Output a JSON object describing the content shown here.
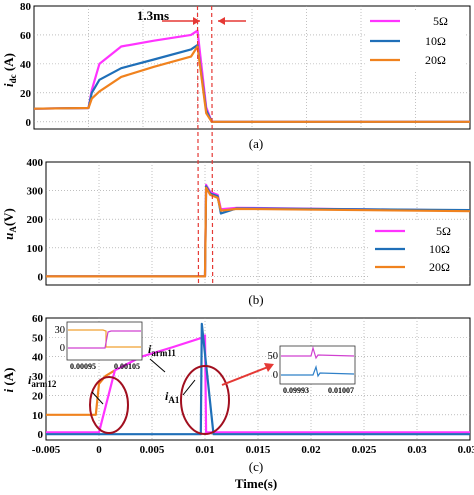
{
  "chart_data": [
    {
      "id": "a",
      "type": "line",
      "caption": "(a)",
      "ylabel_main": "i",
      "ylabel_sub": "dc",
      "ylabel_unit": " (A)",
      "ylim": [
        -5,
        80
      ],
      "yticks": [
        0,
        20,
        40,
        60,
        80
      ],
      "xlim": [
        -0.005,
        0.035
      ],
      "grid": true,
      "legend_position": "right",
      "annotation": "1.3ms",
      "series": [
        {
          "name": "5Ω",
          "color": "#ff33ff",
          "x": [
            -0.005,
            0.0,
            0.0003,
            0.001,
            0.003,
            0.006,
            0.0094,
            0.01,
            0.0108,
            0.0113,
            0.035
          ],
          "y": [
            9,
            9.5,
            22,
            40,
            52,
            56,
            60,
            63,
            10,
            0,
            0
          ]
        },
        {
          "name": "10Ω",
          "color": "#1f6fb8",
          "x": [
            -0.005,
            0.0,
            0.0003,
            0.001,
            0.003,
            0.006,
            0.0094,
            0.01,
            0.0108,
            0.0113,
            0.035
          ],
          "y": [
            9,
            9.5,
            20,
            29,
            37,
            43,
            50,
            53,
            8,
            0,
            0
          ]
        },
        {
          "name": "20Ω",
          "color": "#f0821e",
          "x": [
            -0.005,
            0.0,
            0.0003,
            0.001,
            0.003,
            0.006,
            0.0094,
            0.01,
            0.0108,
            0.0113,
            0.035
          ],
          "y": [
            9,
            9.5,
            16,
            21,
            31,
            38,
            45,
            52,
            6,
            0,
            0
          ]
        }
      ]
    },
    {
      "id": "b",
      "type": "line",
      "caption": "(b)",
      "ylabel_main": "u",
      "ylabel_sub": "A",
      "ylabel_unit": "(V)",
      "ylim": [
        -30,
        400
      ],
      "yticks": [
        0,
        100,
        200,
        300,
        400
      ],
      "xlim": [
        -0.005,
        0.035
      ],
      "grid": true,
      "legend_position": "bottom-right",
      "series": [
        {
          "name": "5Ω",
          "color": "#ff33ff",
          "x": [
            -0.005,
            0.01,
            0.0101,
            0.0105,
            0.0112,
            0.0115,
            0.013,
            0.035
          ],
          "y": [
            0,
            0,
            320,
            295,
            285,
            235,
            240,
            230
          ]
        },
        {
          "name": "10Ω",
          "color": "#1f6fb8",
          "x": [
            -0.005,
            0.01,
            0.0101,
            0.0105,
            0.0112,
            0.0115,
            0.013,
            0.035
          ],
          "y": [
            0,
            0,
            315,
            290,
            280,
            220,
            238,
            232
          ]
        },
        {
          "name": "20Ω",
          "color": "#f0821e",
          "x": [
            -0.005,
            0.01,
            0.0101,
            0.0105,
            0.0112,
            0.0115,
            0.013,
            0.035
          ],
          "y": [
            0,
            0,
            310,
            285,
            275,
            230,
            236,
            228
          ]
        }
      ]
    },
    {
      "id": "c",
      "type": "line",
      "caption": "(c)",
      "ylabel_main": "i",
      "ylabel_unit": " (A)",
      "xlabel": "Time(s)",
      "ylim": [
        -3,
        60
      ],
      "yticks": [
        0,
        10,
        20,
        30,
        40,
        50,
        60
      ],
      "xlim": [
        -0.005,
        0.035
      ],
      "xticks": [
        -0.005,
        0,
        0.005,
        0.01,
        0.015,
        0.02,
        0.025,
        0.03,
        0.035
      ],
      "xtick_labels": [
        "-0.005",
        "0",
        "0.005",
        "0.01",
        "0.015",
        "0.02",
        "0.025",
        "0.03",
        "0.035"
      ],
      "grid": true,
      "series": [
        {
          "name": "iarm12",
          "color": "#f0821e",
          "x": [
            -0.005,
            -0.0003,
            0.0,
            0.0006,
            0.0015
          ],
          "y": [
            10,
            10,
            26,
            30,
            33
          ]
        },
        {
          "name": "iarm11",
          "color": "#ff33ff",
          "x": [
            -0.005,
            0.0,
            0.0015,
            0.004,
            0.007,
            0.0098,
            0.01,
            0.0101,
            0.012,
            0.035
          ],
          "y": [
            1,
            1,
            33,
            40,
            45,
            50,
            51,
            1,
            1,
            1
          ]
        },
        {
          "name": "iA1",
          "color": "#1f6fb8",
          "x": [
            -0.005,
            0.0096,
            0.0097,
            0.0108,
            0.0112,
            0.035
          ],
          "y": [
            0,
            0,
            57,
            0,
            0,
            0
          ]
        }
      ],
      "labels": {
        "arm11_main": "i",
        "arm11_sub": "arm11",
        "arm12_main": "i",
        "arm12_sub": "arm12",
        "a1_main": "i",
        "a1_sub": "A1"
      },
      "insets": [
        {
          "id": "left",
          "xtick_labels": [
            "0.00095",
            "0.00105"
          ],
          "yticks": [
            0,
            30
          ],
          "ylim": [
            -5,
            40
          ]
        },
        {
          "id": "right",
          "xtick_labels": [
            "0.09993",
            "0.01007"
          ],
          "yticks": [
            0,
            50
          ],
          "ylim": [
            -10,
            65
          ]
        }
      ]
    }
  ]
}
